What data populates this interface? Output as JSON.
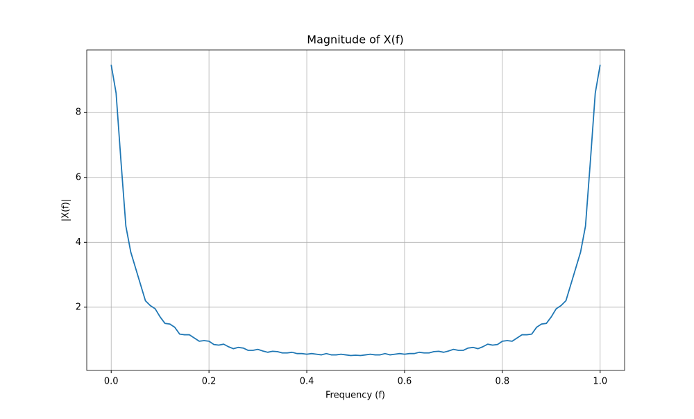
{
  "chart_data": {
    "type": "line",
    "title": "Magnitude of X(f)",
    "x_label": "Frequency (f)",
    "y_label": "|X(f)|",
    "x": [
      0,
      0.01,
      0.02,
      0.03,
      0.04,
      0.05,
      0.06,
      0.07,
      0.08,
      0.09,
      0.1,
      0.11,
      0.12,
      0.13,
      0.14,
      0.15,
      0.16,
      0.17,
      0.18,
      0.19,
      0.2,
      0.21,
      0.22,
      0.23,
      0.24,
      0.25,
      0.26,
      0.27,
      0.28,
      0.29,
      0.3,
      0.31,
      0.32,
      0.33,
      0.34,
      0.35,
      0.36,
      0.37,
      0.38,
      0.39,
      0.4,
      0.41,
      0.42,
      0.43,
      0.44,
      0.45,
      0.46,
      0.47,
      0.48,
      0.49,
      0.5,
      0.51,
      0.52,
      0.53,
      0.54,
      0.55,
      0.56,
      0.57,
      0.58,
      0.59,
      0.6,
      0.61,
      0.62,
      0.63,
      0.64,
      0.65,
      0.66,
      0.67,
      0.68,
      0.69,
      0.7,
      0.71,
      0.72,
      0.73,
      0.74,
      0.75,
      0.76,
      0.77,
      0.78,
      0.79,
      0.8,
      0.81,
      0.82,
      0.83,
      0.84,
      0.85,
      0.86,
      0.87,
      0.88,
      0.89,
      0.9,
      0.91,
      0.92,
      0.93,
      0.94,
      0.95,
      0.96,
      0.97,
      0.98,
      0.99,
      1
    ],
    "series": [
      {
        "name": "|X(f)|",
        "color": "#1f77b4",
        "values": [
          9.47,
          8.6,
          6.5,
          4.5,
          3.7,
          3.2,
          2.7,
          2.2,
          2.05,
          1.95,
          1.7,
          1.5,
          1.48,
          1.38,
          1.17,
          1.15,
          1.15,
          1.05,
          0.95,
          0.97,
          0.95,
          0.85,
          0.83,
          0.86,
          0.78,
          0.72,
          0.76,
          0.74,
          0.67,
          0.67,
          0.7,
          0.65,
          0.61,
          0.64,
          0.63,
          0.59,
          0.59,
          0.61,
          0.57,
          0.57,
          0.55,
          0.57,
          0.55,
          0.53,
          0.57,
          0.53,
          0.53,
          0.55,
          0.53,
          0.51,
          0.52,
          0.51,
          0.53,
          0.55,
          0.53,
          0.53,
          0.57,
          0.53,
          0.55,
          0.57,
          0.55,
          0.57,
          0.57,
          0.61,
          0.59,
          0.59,
          0.63,
          0.64,
          0.61,
          0.65,
          0.7,
          0.67,
          0.67,
          0.74,
          0.76,
          0.72,
          0.78,
          0.86,
          0.83,
          0.85,
          0.95,
          0.97,
          0.95,
          1.05,
          1.15,
          1.15,
          1.17,
          1.38,
          1.48,
          1.5,
          1.7,
          1.95,
          2.05,
          2.2,
          2.7,
          3.2,
          3.7,
          4.5,
          6.5,
          8.6,
          9.47
        ]
      }
    ],
    "xlim": [
      -0.05,
      1.05
    ],
    "ylim": [
      0.05,
      9.93
    ],
    "xticks": [
      {
        "value": 0,
        "label": "0.0"
      },
      0.2,
      0.4,
      0.6,
      0.8,
      {
        "value": 1,
        "label": "1.0"
      }
    ],
    "yticks": [
      2,
      4,
      6,
      8
    ],
    "grid": true
  }
}
